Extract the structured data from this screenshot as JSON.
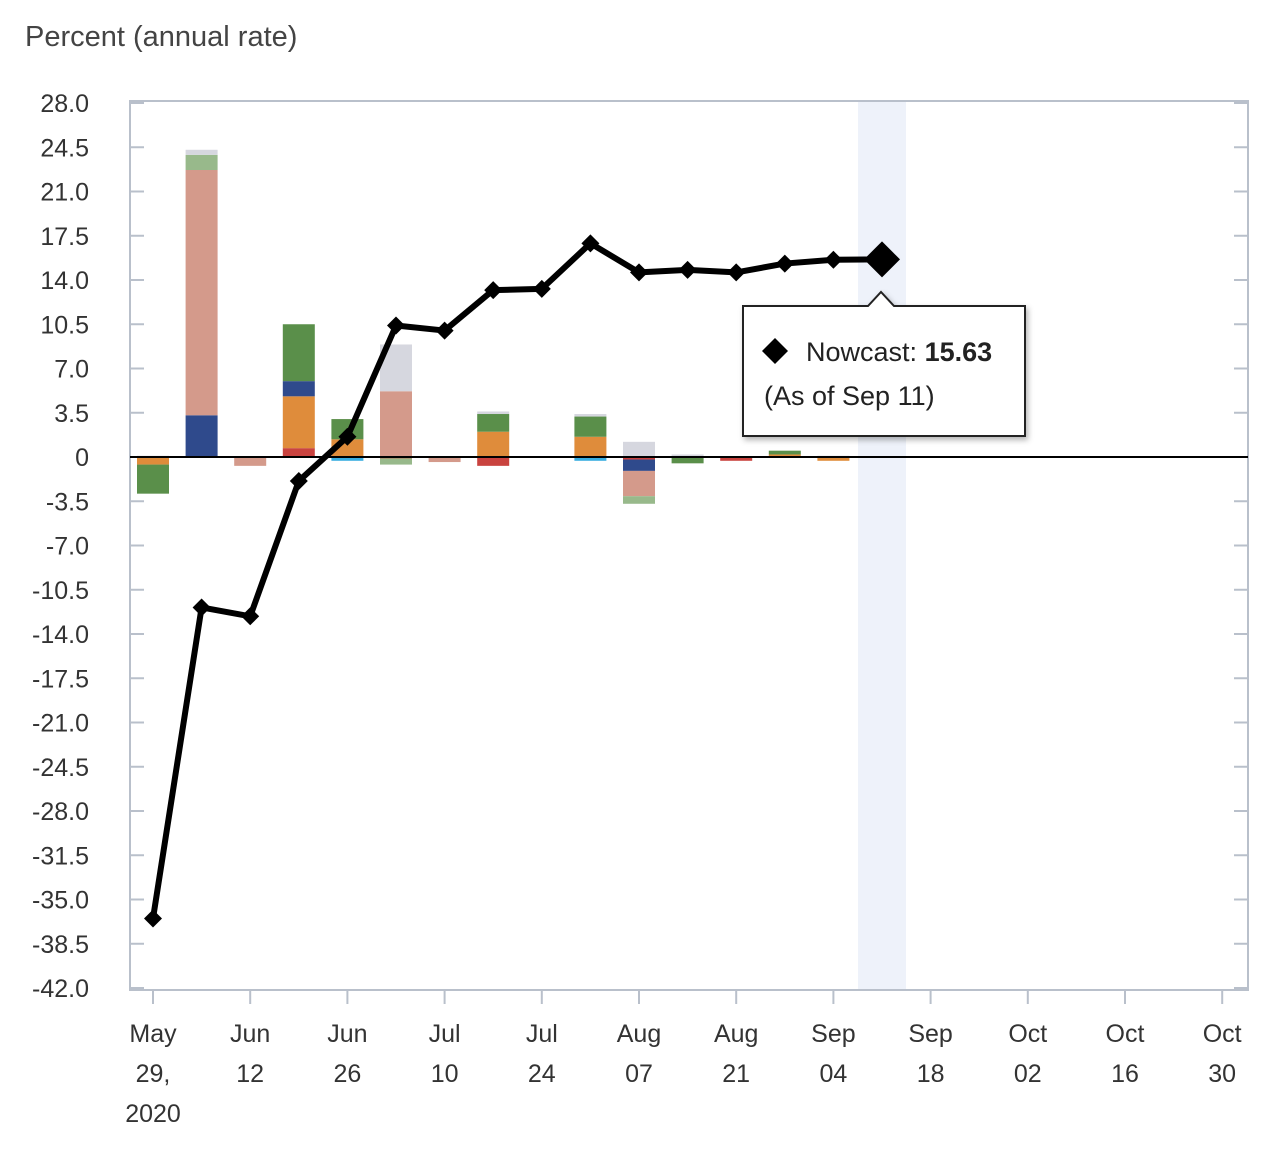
{
  "chart_data": {
    "type": "bar+line",
    "title": "Percent (annual rate)",
    "ylim": [
      -42.0,
      28.0
    ],
    "yticks": [
      "28.0",
      "24.5",
      "21.0",
      "17.5",
      "14.0",
      "10.5",
      "7.0",
      "3.5",
      "0",
      "-3.5",
      "-7.0",
      "-10.5",
      "-14.0",
      "-17.5",
      "-21.0",
      "-24.5",
      "-28.0",
      "-31.5",
      "-35.0",
      "-38.5",
      "-42.0"
    ],
    "ytick_values": [
      28,
      24.5,
      21,
      17.5,
      14,
      10.5,
      7,
      3.5,
      0,
      -3.5,
      -7,
      -10.5,
      -14,
      -17.5,
      -21,
      -24.5,
      -28,
      -31.5,
      -35,
      -38.5,
      -42
    ],
    "xticks": [
      {
        "week": 0,
        "lines": [
          "May",
          "29,",
          "2020"
        ]
      },
      {
        "week": 2,
        "lines": [
          "Jun",
          "12"
        ]
      },
      {
        "week": 4,
        "lines": [
          "Jun",
          "26"
        ]
      },
      {
        "week": 6,
        "lines": [
          "Jul",
          "10"
        ]
      },
      {
        "week": 8,
        "lines": [
          "Jul",
          "24"
        ]
      },
      {
        "week": 10,
        "lines": [
          "Aug",
          "07"
        ]
      },
      {
        "week": 12,
        "lines": [
          "Aug",
          "21"
        ]
      },
      {
        "week": 14,
        "lines": [
          "Sep",
          "04"
        ]
      },
      {
        "week": 16,
        "lines": [
          "Sep",
          "18"
        ]
      },
      {
        "week": 18,
        "lines": [
          "Oct",
          "02"
        ]
      },
      {
        "week": 20,
        "lines": [
          "Oct",
          "16"
        ]
      },
      {
        "week": 22,
        "lines": [
          "Oct",
          "30"
        ]
      }
    ],
    "x_weeks_range": [
      0,
      22
    ],
    "highlight_week": 15,
    "nowcast_line": {
      "color": "#000000",
      "values": [
        -36.5,
        -11.9,
        -12.6,
        -1.9,
        1.6,
        10.4,
        10.0,
        13.2,
        13.3,
        16.9,
        14.6,
        14.8,
        14.6,
        15.3,
        15.6,
        15.63
      ]
    },
    "bar_series": [
      {
        "color": "#3aaee0",
        "values": [
          0,
          0,
          0,
          0,
          -0.3,
          0,
          0,
          0,
          0,
          -0.3,
          0,
          0,
          0,
          0,
          0
        ]
      },
      {
        "color": "#c9433f",
        "values": [
          0,
          0,
          0,
          0.7,
          0,
          -0.1,
          0,
          -0.7,
          0,
          0,
          -0.2,
          0,
          -0.3,
          0,
          0
        ]
      },
      {
        "color": "#df8c3b",
        "values": [
          -0.6,
          0,
          0,
          4.1,
          1.4,
          0,
          0,
          2.0,
          0,
          1.6,
          0,
          0,
          0,
          0.2,
          -0.3
        ]
      },
      {
        "color": "#2f4a8c",
        "values": [
          0,
          3.3,
          0,
          1.2,
          0,
          0,
          0,
          0,
          0,
          0,
          -0.9,
          0,
          0,
          0,
          0
        ]
      },
      {
        "color": "#5a8f4a",
        "values": [
          -2.3,
          0,
          0,
          4.5,
          1.6,
          0,
          0,
          1.4,
          0,
          1.6,
          0,
          -0.5,
          0,
          0.3,
          0
        ]
      },
      {
        "color": "#d49a8b",
        "values": [
          0,
          19.4,
          -0.7,
          0,
          0,
          5.2,
          -0.4,
          0,
          0,
          0,
          -2.0,
          0,
          0,
          0,
          0
        ]
      },
      {
        "color": "#98b98b",
        "values": [
          0,
          1.2,
          0,
          0,
          0,
          -0.5,
          0,
          0,
          0,
          0,
          -0.6,
          0,
          0,
          0,
          0
        ]
      },
      {
        "color": "#d6d7df",
        "values": [
          0.1,
          0.4,
          0,
          0,
          0,
          3.7,
          0,
          0.2,
          0,
          0.2,
          1.2,
          0.2,
          0,
          0,
          0.1
        ]
      }
    ],
    "tooltip": {
      "label": "Nowcast:",
      "value": "15.63",
      "sub": "(As of Sep 11)"
    }
  }
}
